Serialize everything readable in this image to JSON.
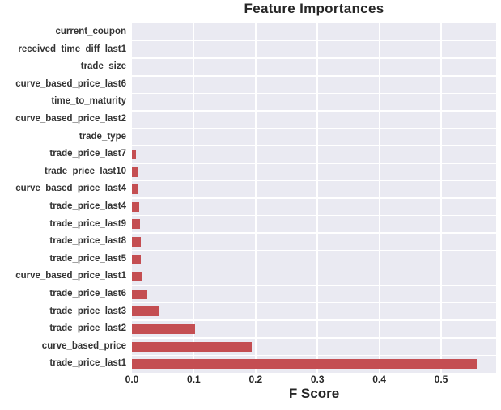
{
  "chart_data": {
    "type": "bar",
    "orientation": "horizontal",
    "title": "Feature Importances",
    "xlabel": "F Score",
    "ylabel": "",
    "category_order": "top-to-bottom",
    "categories": [
      "current_coupon",
      "received_time_diff_last1",
      "trade_size",
      "curve_based_price_last6",
      "time_to_maturity",
      "curve_based_price_last2",
      "trade_type",
      "trade_price_last7",
      "trade_price_last10",
      "curve_based_price_last4",
      "trade_price_last4",
      "trade_price_last9",
      "trade_price_last8",
      "trade_price_last5",
      "curve_based_price_last1",
      "trade_price_last6",
      "trade_price_last3",
      "trade_price_last2",
      "curve_based_price",
      "trade_price_last1"
    ],
    "values": [
      0,
      0,
      0,
      0,
      0,
      0,
      0,
      0.007,
      0.01,
      0.011,
      0.012,
      0.013,
      0.014,
      0.015,
      0.016,
      0.025,
      0.043,
      0.102,
      0.194,
      0.558
    ],
    "xlim": [
      0,
      0.589
    ],
    "x_tick_labels": [
      "0.0",
      "0.1",
      "0.2",
      "0.3",
      "0.4",
      "0.5"
    ],
    "x_tick_values": [
      0,
      0.1,
      0.2,
      0.3,
      0.4,
      0.5
    ],
    "grid": "on",
    "legend": "none",
    "colors": {
      "bar": "#c44e52",
      "plot_background": "#eaeaf2",
      "gridline": "#ffffff",
      "title_text": "#262626",
      "tick_text": "#262626",
      "label_text": "#333333",
      "figure_background": "#ffffff"
    }
  }
}
